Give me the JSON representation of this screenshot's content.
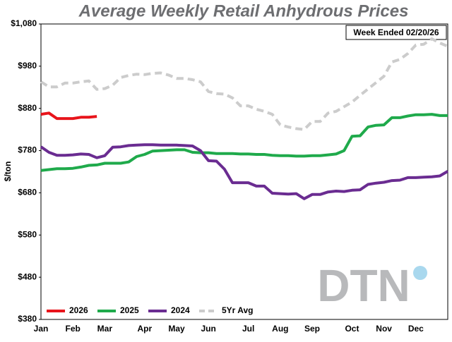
{
  "chart_data": {
    "type": "line",
    "title": "Average Weekly Retail Anhydrous Prices",
    "y_label": "$/ton",
    "annotation": "Week Ended 02/20/26",
    "watermark": "DTN",
    "legend": "bottom-left",
    "categories": [
      "Jan",
      null,
      null,
      null,
      "Feb",
      null,
      null,
      null,
      "Mar",
      null,
      null,
      null,
      null,
      "Apr",
      null,
      null,
      null,
      "May",
      null,
      null,
      null,
      "Jun",
      null,
      null,
      null,
      null,
      "Jul",
      null,
      null,
      null,
      "Aug",
      null,
      null,
      null,
      "Sep",
      null,
      null,
      null,
      null,
      "Oct",
      null,
      null,
      null,
      "Nov",
      null,
      null,
      null,
      "Dec",
      null,
      null,
      null,
      null
    ],
    "ylim": [
      380,
      1080
    ],
    "yticks": [
      {
        "value": 380,
        "label": "$380"
      },
      {
        "value": 480,
        "label": "$480"
      },
      {
        "value": 580,
        "label": "$580"
      },
      {
        "value": 680,
        "label": "$680"
      },
      {
        "value": 780,
        "label": "$780"
      },
      {
        "value": 880,
        "label": "$880"
      },
      {
        "value": 980,
        "label": "$980"
      },
      {
        "value": 1080,
        "label": "$1,080"
      }
    ],
    "series": [
      {
        "name": "2026",
        "color": "#e8141b",
        "dashed": false,
        "values": [
          866,
          869,
          856,
          856,
          856,
          859,
          859,
          861,
          null,
          null,
          null,
          null,
          null,
          null,
          null,
          null,
          null,
          null,
          null,
          null,
          null,
          null,
          null,
          null,
          null,
          null,
          null,
          null,
          null,
          null,
          null,
          null,
          null,
          null,
          null,
          null,
          null,
          null,
          null,
          null,
          null,
          null,
          null,
          null,
          null,
          null,
          null,
          null,
          null,
          null,
          null,
          null
        ]
      },
      {
        "name": "2025",
        "color": "#1faa4b",
        "dashed": false,
        "values": [
          733,
          735,
          737,
          737,
          738,
          741,
          745,
          746,
          750,
          750,
          750,
          753,
          766,
          771,
          779,
          780,
          781,
          782,
          782,
          776,
          775,
          775,
          773,
          773,
          773,
          772,
          772,
          771,
          771,
          769,
          768,
          768,
          767,
          767,
          768,
          768,
          770,
          772,
          780,
          814,
          815,
          836,
          840,
          841,
          858,
          858,
          862,
          865,
          865,
          866,
          863,
          863
        ]
      },
      {
        "name": "2024",
        "color": "#6a2c91",
        "dashed": false,
        "values": [
          789,
          776,
          769,
          769,
          770,
          772,
          771,
          763,
          768,
          788,
          789,
          792,
          793,
          794,
          794,
          793,
          793,
          793,
          792,
          791,
          780,
          756,
          755,
          736,
          704,
          704,
          704,
          696,
          696,
          679,
          678,
          677,
          678,
          666,
          676,
          676,
          682,
          684,
          683,
          686,
          687,
          700,
          703,
          705,
          709,
          710,
          716,
          716,
          717,
          718,
          720,
          731
        ]
      },
      {
        "name": "5Yr Avg",
        "color": "#cccccc",
        "dashed": true,
        "values": [
          943,
          931,
          931,
          940,
          940,
          943,
          945,
          925,
          927,
          935,
          953,
          958,
          961,
          960,
          963,
          964,
          959,
          951,
          951,
          948,
          943,
          920,
          915,
          914,
          905,
          886,
          886,
          878,
          873,
          866,
          841,
          836,
          832,
          830,
          849,
          849,
          869,
          873,
          884,
          895,
          911,
          926,
          941,
          956,
          990,
          996,
          1010,
          1030,
          1032,
          1045,
          1035,
          1027
        ]
      }
    ]
  }
}
